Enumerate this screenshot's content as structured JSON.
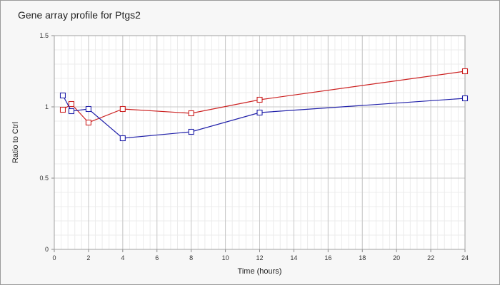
{
  "chart_data": {
    "type": "line",
    "title": "Gene array profile for Ptgs2",
    "xlabel": "Time (hours)",
    "ylabel": "Ratio to Ctrl",
    "xlim": [
      0,
      24
    ],
    "ylim": [
      0,
      1.5
    ],
    "xticks": [
      0,
      2,
      4,
      6,
      8,
      10,
      12,
      14,
      16,
      18,
      20,
      22,
      24
    ],
    "yticks": [
      0,
      0.5,
      1,
      1.5
    ],
    "ytick_labels": [
      "0",
      "0.5",
      "1",
      "1.5"
    ],
    "grid": true,
    "series": [
      {
        "color": "#cc2222",
        "marker": "square",
        "x": [
          0.5,
          1,
          2,
          4,
          8,
          12,
          24
        ],
        "y": [
          0.98,
          1.02,
          0.89,
          0.985,
          0.955,
          1.05,
          1.25
        ]
      },
      {
        "color": "#2222aa",
        "marker": "square",
        "x": [
          0.5,
          1,
          2,
          4,
          8,
          12,
          24
        ],
        "y": [
          1.08,
          0.97,
          0.985,
          0.78,
          0.825,
          0.96,
          1.06
        ]
      }
    ]
  }
}
